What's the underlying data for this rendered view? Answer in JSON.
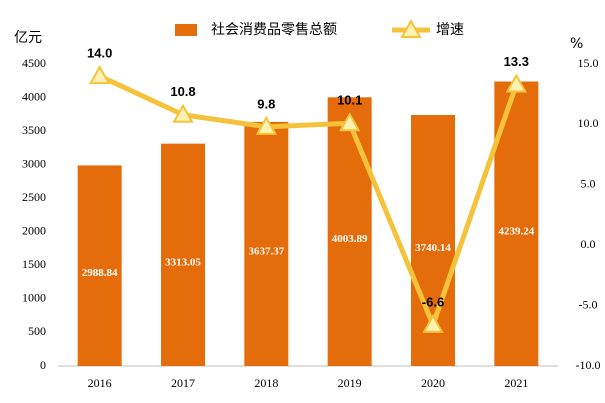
{
  "chart_data": {
    "type": "bar",
    "categories": [
      "2016",
      "2017",
      "2018",
      "2019",
      "2020",
      "2021"
    ],
    "series": [
      {
        "name": "社会消费品零售总额",
        "type": "bar",
        "color": "#e46c0a",
        "values": [
          2988.84,
          3313.05,
          3637.37,
          4003.89,
          3740.14,
          4239.24
        ]
      },
      {
        "name": "增速",
        "type": "line",
        "axis": "y2",
        "color": "#f5c33b",
        "values": [
          14.0,
          10.8,
          9.8,
          10.1,
          -6.6,
          13.3
        ],
        "value_labels": [
          "14.0",
          "10.8",
          "9.8",
          "10.1",
          "-6.6",
          "13.3"
        ]
      }
    ],
    "y_label": "亿元",
    "y2_label": "%",
    "ylim": [
      0,
      4500
    ],
    "yticks": [
      0,
      500,
      1000,
      1500,
      2000,
      2500,
      3000,
      3500,
      4000,
      4500
    ],
    "y2lim": [
      -10,
      15
    ],
    "y2ticks": [
      {
        "value": -10,
        "label": "-10.0"
      },
      {
        "value": -5,
        "label": "-5.0"
      },
      {
        "value": 0,
        "label": "0.0"
      },
      {
        "value": 5,
        "label": "5.0"
      },
      {
        "value": 10,
        "label": "10.0"
      },
      {
        "value": 15,
        "label": "15.0"
      }
    ],
    "grid": false,
    "legend": "top"
  }
}
